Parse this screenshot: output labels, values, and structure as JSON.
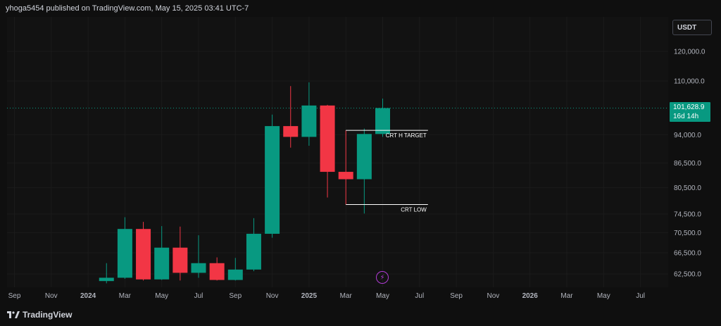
{
  "header": {
    "publisher_text": "yhoga5454 published on TradingView.com, May 15, 2025 03:41 UTC-7"
  },
  "currency_label": "USDT",
  "brand": {
    "name": "TradingView",
    "icon": "tradingview-logo-icon"
  },
  "last_price": {
    "value": "101,628.9",
    "countdown": "16d 14h",
    "color": "#089981"
  },
  "event_icon": "lightning-icon",
  "colors": {
    "up": "#089981",
    "down": "#f23645",
    "background": "#121212",
    "last_price_line": "#089981",
    "annotation": "#ffffff"
  },
  "chart_data": {
    "type": "candlestick",
    "interval": "1M",
    "y_scale": "log",
    "ylim": [
      60000,
      128000
    ],
    "x_ticks": [
      "Sep",
      "Nov",
      "2024",
      "Mar",
      "May",
      "Jul",
      "Sep",
      "Nov",
      "2025",
      "Mar",
      "May",
      "Jul",
      "Sep",
      "Nov",
      "2026",
      "Mar",
      "May",
      "Jul"
    ],
    "y_ticks": [
      "120,000.0",
      "110,000.0",
      "94,000.0",
      "86,500.0",
      "80,500.0",
      "74,500.0",
      "70,500.0",
      "66,500.0",
      "62,500.0"
    ],
    "y_tick_values": [
      120000,
      110000,
      94000,
      86500,
      80500,
      74500,
      70500,
      66500,
      62500
    ],
    "candles": [
      {
        "date": "2024-02",
        "open": 61200,
        "high": 64500,
        "low": 60800,
        "close": 61800
      },
      {
        "date": "2024-03",
        "open": 61800,
        "high": 73800,
        "low": 61600,
        "close": 71300
      },
      {
        "date": "2024-04",
        "open": 71300,
        "high": 72800,
        "low": 61300,
        "close": 61500
      },
      {
        "date": "2024-05",
        "open": 61500,
        "high": 71900,
        "low": 61400,
        "close": 67500
      },
      {
        "date": "2024-06",
        "open": 67500,
        "high": 71800,
        "low": 61300,
        "close": 62700
      },
      {
        "date": "2024-07",
        "open": 62700,
        "high": 70000,
        "low": 61800,
        "close": 64500
      },
      {
        "date": "2024-08",
        "open": 64500,
        "high": 65600,
        "low": 61300,
        "close": 61400
      },
      {
        "date": "2024-09",
        "open": 61400,
        "high": 65500,
        "low": 61300,
        "close": 63300
      },
      {
        "date": "2024-10",
        "open": 63300,
        "high": 73600,
        "low": 63000,
        "close": 70300
      },
      {
        "date": "2024-11",
        "open": 70300,
        "high": 99700,
        "low": 69500,
        "close": 96400
      },
      {
        "date": "2024-12",
        "open": 96400,
        "high": 108400,
        "low": 90500,
        "close": 93400
      },
      {
        "date": "2025-01",
        "open": 93400,
        "high": 109600,
        "low": 91000,
        "close": 102400
      },
      {
        "date": "2025-02",
        "open": 102400,
        "high": 102600,
        "low": 78200,
        "close": 84300
      },
      {
        "date": "2025-03",
        "open": 84300,
        "high": 95200,
        "low": 76600,
        "close": 82500
      },
      {
        "date": "2025-04",
        "open": 82500,
        "high": 95700,
        "low": 74600,
        "close": 94200
      },
      {
        "date": "2025-05",
        "open": 94200,
        "high": 104500,
        "low": 93400,
        "close": 101628.9
      }
    ],
    "last_price": 101628.9,
    "annotations": [
      {
        "label": "CRT H TARGET",
        "price": 95200,
        "from": "2025-03",
        "to": "2025-07"
      },
      {
        "label": "CRT LOW",
        "price": 76600,
        "from": "2025-03",
        "to": "2025-07"
      }
    ]
  }
}
